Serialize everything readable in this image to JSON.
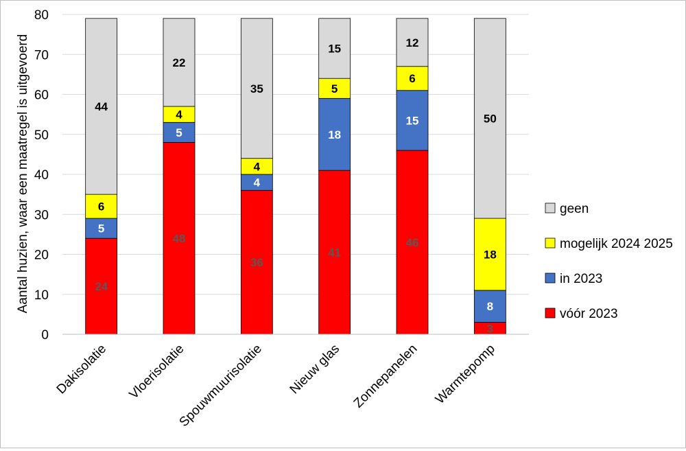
{
  "chart_data": {
    "type": "bar",
    "stacked": true,
    "ylabel": "Aantal huzien, waar een maatregel is uitgevoerd",
    "xlabel": "",
    "ylim": [
      0,
      80
    ],
    "yticks": [
      0,
      10,
      20,
      30,
      40,
      50,
      60,
      70,
      80
    ],
    "grid": true,
    "legend_position": "right",
    "categories": [
      "Dakisolatie",
      "Vloerisolatie",
      "Spouwmuurisolatie",
      "Nieuw glas",
      "Zonnepanelen",
      "Warmtepomp"
    ],
    "series": [
      {
        "name": "vóór 2023",
        "color": "#ff0000",
        "label_color": "#595959",
        "values": [
          24,
          48,
          36,
          41,
          46,
          3
        ]
      },
      {
        "name": "in 2023",
        "color": "#4472c4",
        "label_color": "#ffffff",
        "values": [
          5,
          5,
          4,
          18,
          15,
          8
        ]
      },
      {
        "name": "mogelijk 2024 2025",
        "color": "#ffff00",
        "label_color": "#000000",
        "values": [
          6,
          4,
          4,
          5,
          6,
          18
        ]
      },
      {
        "name": "geen",
        "color": "#d9d9d9",
        "label_color": "#000000",
        "values": [
          44,
          22,
          35,
          15,
          12,
          50
        ]
      }
    ],
    "legend_order": [
      "geen",
      "mogelijk 2024 2025",
      "in 2023",
      "vóór 2023"
    ]
  }
}
